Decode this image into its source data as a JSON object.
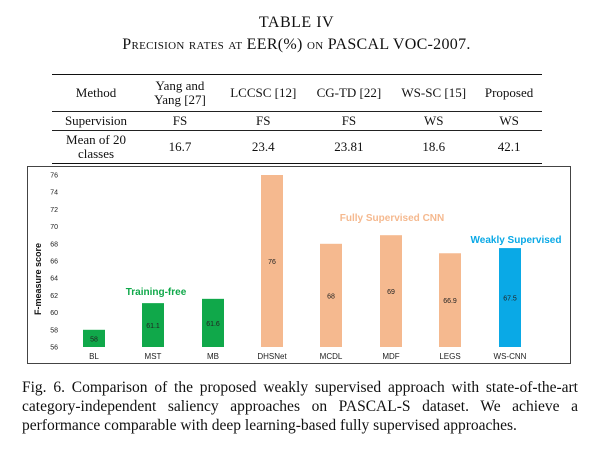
{
  "table": {
    "number": "TABLE IV",
    "caption": "Precision rates at EER(%) on PASCAL VOC-2007.",
    "header": [
      "Method",
      "Yang and Yang [27]",
      "LCCSC [12]",
      "CG-TD [22]",
      "WS-SC [15]",
      "Proposed"
    ],
    "rows": [
      [
        "Supervision",
        "FS",
        "FS",
        "FS",
        "WS",
        "WS"
      ],
      [
        "Mean of 20 classes",
        "16.7",
        "23.4",
        "23.81",
        "18.6",
        "42.1"
      ]
    ]
  },
  "chart_data": {
    "type": "bar",
    "categories": [
      "BL",
      "MST",
      "MB",
      "DHSNet",
      "MCDL",
      "MDF",
      "LEGS",
      "WS-CNN"
    ],
    "values": [
      58,
      61.1,
      61.6,
      76,
      68,
      69,
      66.9,
      67.5
    ],
    "value_labels": [
      "58",
      "61.1",
      "61.6",
      "76",
      "68",
      "69",
      "66.9",
      "67.5"
    ],
    "ylabel": "F-measure score",
    "ylim": [
      56,
      76
    ],
    "yticks": [
      "56",
      "58",
      "60",
      "62",
      "64",
      "66",
      "68",
      "70",
      "72",
      "74",
      "76"
    ],
    "groups": [
      {
        "label": "Training-free",
        "members": [
          0,
          1,
          2
        ],
        "color": "#10a84a"
      },
      {
        "label": "Fully Supervised CNN",
        "members": [
          3,
          4,
          5,
          6
        ],
        "color": "#f5b98f"
      },
      {
        "label": "Weakly Supervised",
        "members": [
          7
        ],
        "color": "#0aa9e6"
      }
    ],
    "grid": false
  },
  "figure": {
    "caption": "Fig. 6.  Comparison of the proposed weakly supervised approach with state-of-the-art category-independent saliency approaches on PASCAL-S dataset. We achieve a performance comparable with deep learning-based fully supervised approaches."
  }
}
